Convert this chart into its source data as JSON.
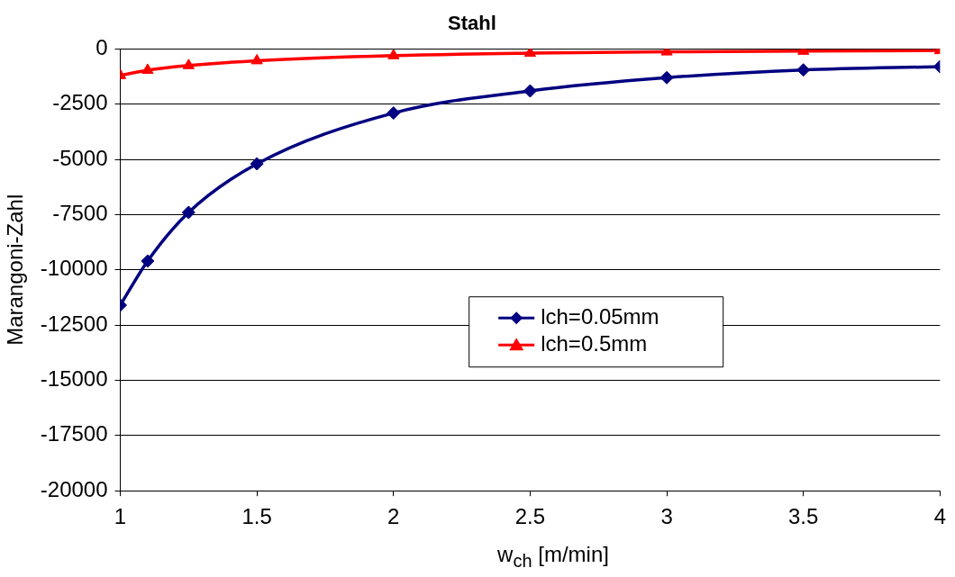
{
  "chart_data": {
    "type": "line",
    "title": "Stahl",
    "xlabel": "w$_{ch}$ [m/min]",
    "ylabel": "Marangoni-Zahl",
    "x": [
      1,
      1.1,
      1.25,
      1.5,
      2,
      2.5,
      3,
      3.5,
      4
    ],
    "series": [
      {
        "name": "lch=0.05mm",
        "color": "#000080",
        "marker": "diamond",
        "values": [
          -11600,
          -9600,
          -7400,
          -5200,
          -2900,
          -1900,
          -1300,
          -950,
          -800
        ]
      },
      {
        "name": "lch=0.5mm",
        "color": "#ff0000",
        "marker": "triangle",
        "values": [
          -1200,
          -960,
          -750,
          -530,
          -300,
          -190,
          -130,
          -100,
          -70
        ]
      }
    ],
    "xlim": [
      1,
      4
    ],
    "xticks": [
      1,
      1.5,
      2,
      2.5,
      3,
      3.5,
      4
    ],
    "ylim": [
      -20000,
      0
    ],
    "yticks": [
      -20000,
      -17500,
      -15000,
      -12500,
      -10000,
      -7500,
      -5000,
      -2500,
      0
    ],
    "grid": "y",
    "legend": "center right",
    "line_style": "solid"
  }
}
